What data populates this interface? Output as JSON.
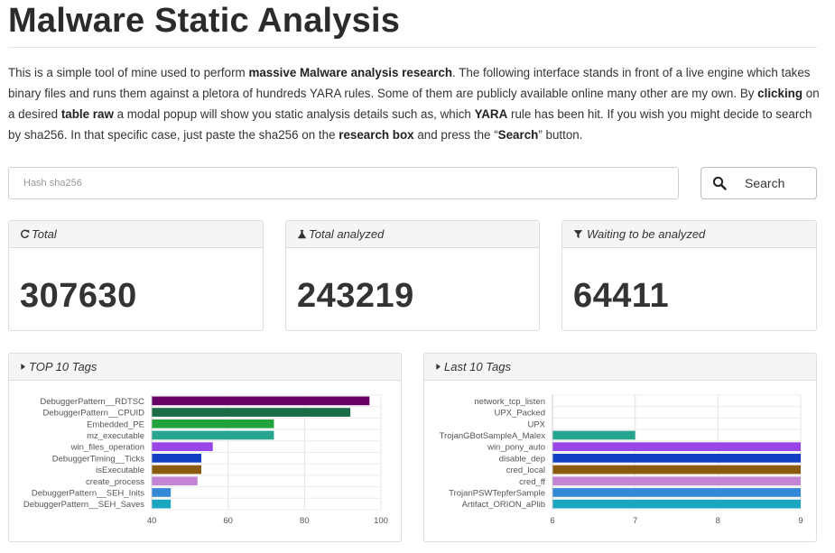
{
  "page": {
    "title": "Malware Static Analysis"
  },
  "intro": {
    "p1": "This is a simple tool of mine used to perform ",
    "b1": "massive Malware analysis research",
    "p2": ". The following interface stands in front of a live engine which takes binary files and runs them against a pletora of hundreds YARA rules. Some of them are publicly available online many other are my own. By ",
    "b2": "clicking",
    "p3": " on a desired ",
    "b3": "table raw",
    "p4": " a modal popup will show you static analysis details such as, which ",
    "b4": "YARA",
    "p5": " rule has been hit. If you wish you might decide to search by sha256. In that specific case, just paste the sha256 on the ",
    "b5": "research box",
    "p6": " and press the “",
    "b6": "Search",
    "p7": "” button."
  },
  "search": {
    "placeholder": "Hash sha256",
    "value": "",
    "button_label": "Search",
    "button_icon": "search-icon"
  },
  "stats": {
    "total": {
      "label": "Total",
      "value": "307630",
      "icon": "refresh-icon"
    },
    "analyzed": {
      "label": "Total analyzed",
      "value": "243219",
      "icon": "flask-icon"
    },
    "waiting": {
      "label": "Waiting to be analyzed",
      "value": "64411",
      "icon": "filter-icon"
    }
  },
  "top_tags_panel": {
    "title": "TOP 10 Tags",
    "icon": "caret-right-icon"
  },
  "last_tags_panel": {
    "title": "Last 10 Tags",
    "icon": "caret-right-icon"
  },
  "chart_data": [
    {
      "type": "bar",
      "orientation": "horizontal",
      "title": "TOP 10 Tags",
      "categories": [
        "DebuggerPattern__RDTSC",
        "DebuggerPattern__CPUID",
        "Embedded_PE",
        "mz_executable",
        "win_files_operation",
        "DebuggerTiming__Ticks",
        "isExecutable",
        "create_process",
        "DebuggerPattern__SEH_Inits",
        "DebuggerPattern__SEH_Saves"
      ],
      "values": [
        97,
        92,
        72,
        72,
        56,
        53,
        53,
        52,
        45,
        45
      ],
      "colors": [
        "#660066",
        "#1b6b46",
        "#22a23a",
        "#26a58f",
        "#9a45e8",
        "#123ec2",
        "#8a5a0e",
        "#c484d6",
        "#3489d6",
        "#1aa6c0"
      ],
      "xlim": [
        40,
        100
      ],
      "xticks": [
        "40",
        "60",
        "80",
        "100"
      ],
      "grid": true
    },
    {
      "type": "bar",
      "orientation": "horizontal",
      "title": "Last 10 Tags",
      "categories": [
        "network_tcp_listen",
        "UPX_Packed",
        "UPX",
        "TrojanGBotSampleA_Malex",
        "win_pony_auto",
        "disable_dep",
        "cred_local",
        "cred_ff",
        "TrojanPSWTepferSample",
        "Artifact_ORION_aPlib"
      ],
      "values": [
        6,
        6,
        6,
        7,
        9,
        9,
        9,
        9,
        9,
        9
      ],
      "colors": [
        "#999999",
        "#999999",
        "#999999",
        "#26a58f",
        "#9a45e8",
        "#123ec2",
        "#8a5a0e",
        "#c484d6",
        "#3489d6",
        "#1aa6c0"
      ],
      "xlim": [
        6,
        9
      ],
      "xticks": [
        "6",
        "7",
        "8",
        "9"
      ],
      "grid": true
    }
  ]
}
